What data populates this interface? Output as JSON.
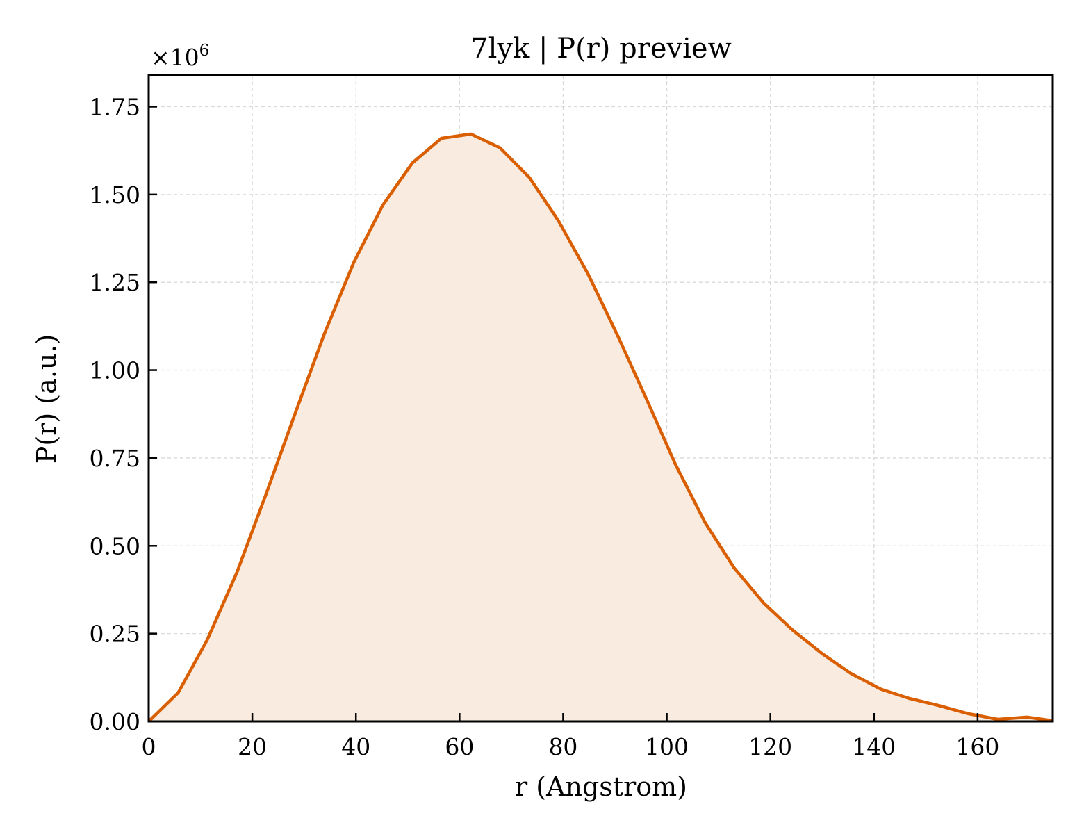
{
  "chart_data": {
    "type": "area",
    "title": "7lyk | P(r) preview",
    "xlabel": "r (Angstrom)",
    "ylabel": "P(r) (a.u.)",
    "y_multiplier": "×10",
    "y_multiplier_exp": "6",
    "xlim": [
      0,
      174.5
    ],
    "ylim": [
      0,
      1.84
    ],
    "xticks": [
      0,
      20,
      40,
      60,
      80,
      100,
      120,
      140,
      160
    ],
    "xtick_labels": [
      "0",
      "20",
      "40",
      "60",
      "80",
      "100",
      "120",
      "140",
      "160"
    ],
    "yticks": [
      0,
      0.25,
      0.5,
      0.75,
      1.0,
      1.25,
      1.5,
      1.75
    ],
    "ytick_labels": [
      "0.00",
      "0.25",
      "0.50",
      "0.75",
      "1.00",
      "1.25",
      "1.50",
      "1.75"
    ],
    "grid": true,
    "line_color": "#d95f02",
    "fill_color": "#f9ebe0",
    "series": [
      {
        "x": [
          0,
          5.7,
          11.3,
          17.0,
          22.6,
          28.3,
          33.9,
          39.6,
          45.2,
          50.9,
          56.5,
          62.2,
          67.8,
          73.5,
          79.1,
          84.8,
          90.4,
          96.1,
          101.7,
          107.4,
          113.0,
          118.7,
          124.3,
          130.0,
          135.6,
          141.3,
          146.9,
          152.6,
          158.2,
          163.9,
          169.5,
          174.5
        ],
        "y": [
          0.0,
          0.082,
          0.232,
          0.423,
          0.645,
          0.878,
          1.103,
          1.307,
          1.47,
          1.59,
          1.66,
          1.672,
          1.633,
          1.548,
          1.425,
          1.274,
          1.102,
          0.917,
          0.731,
          0.566,
          0.437,
          0.337,
          0.26,
          0.193,
          0.136,
          0.092,
          0.065,
          0.045,
          0.022,
          0.006,
          0.012,
          0.002
        ]
      }
    ]
  }
}
